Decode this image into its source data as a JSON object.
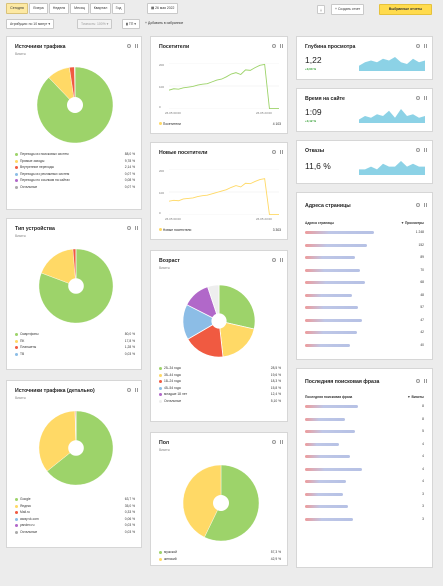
{
  "toolbar": {
    "periods": [
      "Сегодня",
      "Вчера",
      "Неделя",
      "Месяц",
      "Квартал",
      "Год"
    ],
    "active_period_index": 0,
    "date": "26 мая 2022",
    "download_icon": "download-icon",
    "create_report": "Создать отчет",
    "goto_report": "Выбранные отчеты"
  },
  "filters": {
    "attribution": "Атрибуция: по 10 минут",
    "accuracy": "Точность: 100%",
    "segment": "ТП",
    "add_widget": "Добавить в избранное"
  },
  "colors": {
    "green": "#9dd36a",
    "yellow": "#ffd966",
    "orange": "#f5a623",
    "red": "#f05a41",
    "blue": "#8cbde6",
    "purple": "#b168c9",
    "white": "#f2f2f2",
    "spark": "#8cd2e6"
  },
  "cards": {
    "traffic_sources": {
      "title": "Источники трафика",
      "subtitle": "Визиты",
      "legend": [
        {
          "label": "Переходы из поисковых систем",
          "value": "88,0 %",
          "color": "#9dd36a"
        },
        {
          "label": "Прямые заходы",
          "value": "9,78 %",
          "color": "#ffd966"
        },
        {
          "label": "Внутренние переходы",
          "value": "2,14 %",
          "color": "#f05a41"
        },
        {
          "label": "Переходы из рекламных систем",
          "value": "0,07 %",
          "color": "#8cbde6"
        },
        {
          "label": "Переходы по ссылкам на сайтах",
          "value": "0,08 %",
          "color": "#b168c9"
        },
        {
          "label": "Остальные",
          "value": "0,07 %",
          "color": "#aaaaaa"
        }
      ],
      "chart_data": {
        "type": "pie",
        "categories": [
          "Переходы из поисковых систем",
          "Прямые заходы",
          "Внутренние переходы",
          "Переходы из рекламных систем",
          "Переходы по ссылкам на сайтах",
          "Остальные"
        ],
        "values": [
          88.0,
          9.78,
          2.14,
          0.07,
          0.08,
          0.07
        ]
      }
    },
    "device_type": {
      "title": "Тип устройства",
      "subtitle": "Визиты",
      "legend": [
        {
          "label": "Смартфоны",
          "value": "80,0 %",
          "color": "#9dd36a"
        },
        {
          "label": "ПК",
          "value": "17,8 %",
          "color": "#ffd966"
        },
        {
          "label": "Планшеты",
          "value": "1,28 %",
          "color": "#f05a41"
        },
        {
          "label": "ТВ",
          "value": "0,03 %",
          "color": "#8cbde6"
        }
      ],
      "chart_data": {
        "type": "pie",
        "categories": [
          "Смартфоны",
          "ПК",
          "Планшеты",
          "ТВ"
        ],
        "values": [
          80.0,
          17.8,
          1.28,
          0.03
        ]
      }
    },
    "traffic_detailed": {
      "title": "Источники трафика (детально)",
      "subtitle": "Визиты",
      "legend": [
        {
          "label": "Google",
          "value": "63,7 %",
          "color": "#9dd36a"
        },
        {
          "label": "Яндекс",
          "value": "35,0 %",
          "color": "#ffd966"
        },
        {
          "label": "Mail.ru",
          "value": "0,33 %",
          "color": "#f05a41"
        },
        {
          "label": "away.vk.com",
          "value": "0,06 %",
          "color": "#8cbde6"
        },
        {
          "label": "yandex.ru",
          "value": "0,03 %",
          "color": "#b168c9"
        },
        {
          "label": "Остальные",
          "value": "0,03 %",
          "color": "#aaaaaa"
        }
      ],
      "chart_data": {
        "type": "pie",
        "categories": [
          "Google",
          "Яндекс",
          "Mail.ru",
          "away.vk.com",
          "yandex.ru",
          "Остальные"
        ],
        "values": [
          63.7,
          35.0,
          0.33,
          0.06,
          0.03,
          0.03
        ]
      }
    },
    "visitors": {
      "title": "Посетители",
      "axis": {
        "y_top": "200",
        "y_mid": "100",
        "y_bot": "0",
        "x_left": "26.05 00:00",
        "x_right": "26.05 23:00"
      },
      "legend_label": "Посетители",
      "legend_value": "4 103",
      "chart_data": {
        "type": "line",
        "ylim": [
          0,
          200
        ],
        "values": [
          82,
          88,
          86,
          92,
          95,
          98,
          104,
          108,
          110,
          118,
          126,
          130,
          140,
          152,
          158,
          150,
          170,
          168,
          180,
          190,
          194,
          2,
          2,
          2
        ]
      }
    },
    "new_visitors": {
      "title": "Новые посетители",
      "axis": {
        "y_top": "200",
        "y_mid": "100",
        "y_bot": "0",
        "x_left": "26.05 00:00",
        "x_right": "26.05 23:00"
      },
      "legend_label": "Новые посетители",
      "legend_value": "3 303",
      "chart_data": {
        "type": "line",
        "ylim": [
          0,
          200
        ],
        "values": [
          60,
          64,
          62,
          70,
          72,
          74,
          80,
          84,
          86,
          92,
          98,
          104,
          110,
          120,
          128,
          122,
          138,
          136,
          146,
          154,
          158,
          2,
          2,
          2
        ]
      }
    },
    "age": {
      "title": "Возраст",
      "subtitle": "Визиты",
      "legend": [
        {
          "label": "25–34 года",
          "value": "28,5 %",
          "color": "#9dd36a"
        },
        {
          "label": "35–44 года",
          "value": "19,6 %",
          "color": "#ffd966"
        },
        {
          "label": "18–24 года",
          "value": "18,3 %",
          "color": "#f05a41"
        },
        {
          "label": "45–54 года",
          "value": "15,8 %",
          "color": "#8cbde6"
        },
        {
          "label": "младше 18 лет",
          "value": "12,4 %",
          "color": "#b168c9"
        },
        {
          "label": "Остальные",
          "value": "5,10 %",
          "color": "#eeeeee"
        }
      ],
      "chart_data": {
        "type": "pie",
        "categories": [
          "25–34 года",
          "35–44 года",
          "18–24 года",
          "45–54 года",
          "младше 18 лет",
          "Остальные"
        ],
        "values": [
          28.5,
          19.6,
          18.3,
          15.8,
          12.4,
          5.1
        ]
      }
    },
    "gender": {
      "title": "Пол",
      "subtitle": "Визиты",
      "legend": [
        {
          "label": "мужской",
          "value": "57,3 %",
          "color": "#9dd36a"
        },
        {
          "label": "женский",
          "value": "42,9 %",
          "color": "#ffd966"
        }
      ],
      "chart_data": {
        "type": "pie",
        "categories": [
          "мужской",
          "женский"
        ],
        "values": [
          57.3,
          42.9
        ]
      }
    },
    "depth": {
      "title": "Глубина просмотра",
      "value": "1,22",
      "delta": "+0,00 %",
      "chart_data": {
        "type": "area",
        "values": [
          3,
          5,
          6,
          5,
          7,
          6,
          8,
          5,
          4,
          7,
          5,
          6
        ]
      }
    },
    "time": {
      "title": "Время на сайте",
      "value": "1:09",
      "delta": "+0,12 %",
      "chart_data": {
        "type": "area",
        "values": [
          2,
          4,
          3,
          5,
          4,
          7,
          3,
          8,
          4,
          5,
          3,
          4
        ]
      }
    },
    "bounce": {
      "title": "Отказы",
      "value": "11,6 %",
      "chart_data": {
        "type": "area",
        "values": [
          2,
          2,
          3,
          2,
          4,
          3,
          3,
          5,
          3,
          4,
          3,
          3
        ]
      }
    },
    "pages": {
      "title": "Адреса страницы",
      "col_left": "Адреса страницы",
      "col_right": "Просмотры",
      "rows": [
        {
          "num": "1 248",
          "w": 0.8
        },
        {
          "num": "152",
          "w": 0.72
        },
        {
          "num": "89",
          "w": 0.58
        },
        {
          "num": "70",
          "w": 0.64
        },
        {
          "num": "68",
          "w": 0.7
        },
        {
          "num": "48",
          "w": 0.55
        },
        {
          "num": "57",
          "w": 0.62
        },
        {
          "num": "47",
          "w": 0.66
        },
        {
          "num": "42",
          "w": 0.6
        },
        {
          "num": "40",
          "w": 0.52
        }
      ]
    },
    "search_phrases": {
      "title": "Последняя поисковая фраза",
      "col_left": "Последняя поисковая фраза",
      "col_right": "Визиты",
      "rows": [
        {
          "num": "8",
          "w": 0.62
        },
        {
          "num": "8",
          "w": 0.46
        },
        {
          "num": "5",
          "w": 0.58
        },
        {
          "num": "4",
          "w": 0.4
        },
        {
          "num": "4",
          "w": 0.52
        },
        {
          "num": "4",
          "w": 0.66
        },
        {
          "num": "4",
          "w": 0.48
        },
        {
          "num": "3",
          "w": 0.44
        },
        {
          "num": "3",
          "w": 0.5
        },
        {
          "num": "3",
          "w": 0.56
        }
      ]
    }
  }
}
